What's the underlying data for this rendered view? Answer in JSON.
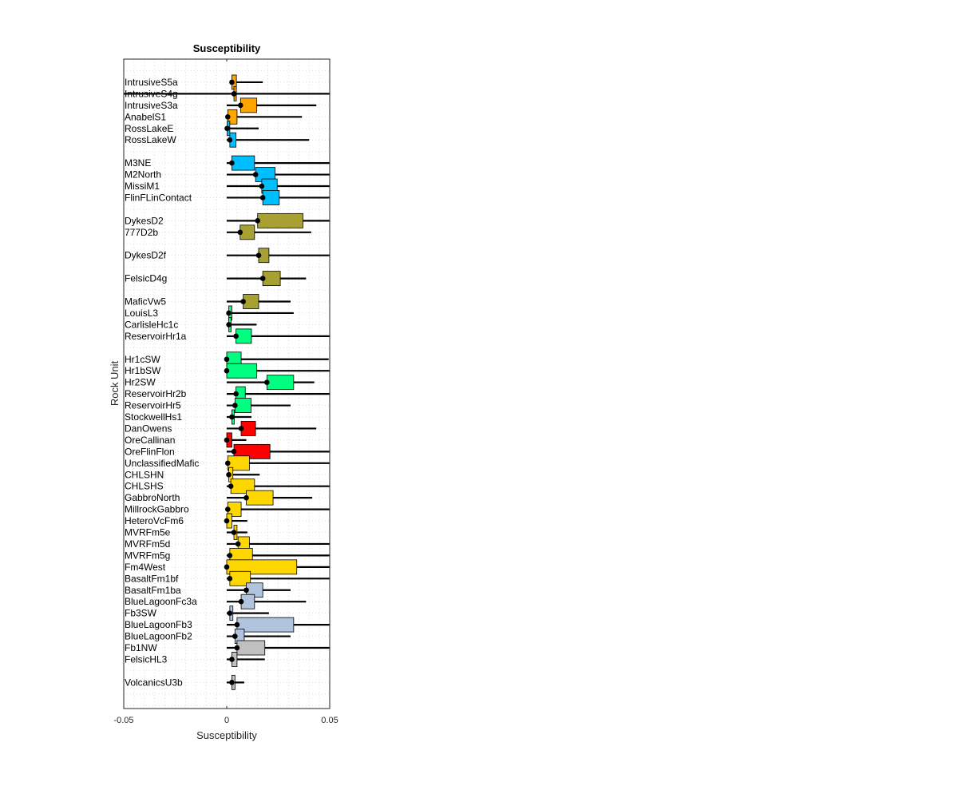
{
  "chart_data": {
    "type": "box",
    "title": "Susceptibility",
    "xlabel": "Susceptibility",
    "ylabel": "Rock Unit",
    "xlim": [
      -0.05,
      0.05
    ],
    "xticks": [
      -0.05,
      0,
      0.05
    ],
    "xtick_labels": [
      "-0.05",
      "0",
      "0.05"
    ],
    "grid": true,
    "units": [
      {
        "name": "IntrusiveS5a",
        "row": 2,
        "color": "#FFA500",
        "median": 0.0025,
        "q1": 0.0025,
        "q3": 0.0047,
        "whisker_low": 0.002,
        "whisker_high": 0.0175
      },
      {
        "name": "IntrusiveS4g",
        "row": 3,
        "color": "#FFA500",
        "median": 0.0035,
        "q1": 0.0035,
        "q3": 0.0035,
        "whisker_low": -0.05,
        "whisker_high": 0.05
      },
      {
        "name": "IntrusiveS3a",
        "row": 4,
        "color": "#FFA500",
        "median": 0.0067,
        "q1": 0.0067,
        "q3": 0.0145,
        "whisker_low": 0.0,
        "whisker_high": 0.0435
      },
      {
        "name": "AnabelS1",
        "row": 5,
        "color": "#FFA500",
        "median": 0.0005,
        "q1": 0.0005,
        "q3": 0.005,
        "whisker_low": 0.0,
        "whisker_high": 0.0365
      },
      {
        "name": "RossLakeE",
        "row": 6,
        "color": "#00BFFF",
        "median": 0.0002,
        "q1": 0.0002,
        "q3": 0.0015,
        "whisker_low": 0.0,
        "whisker_high": 0.0155
      },
      {
        "name": "RossLakeW",
        "row": 7,
        "color": "#00BFFF",
        "median": 0.0015,
        "q1": 0.0015,
        "q3": 0.0045,
        "whisker_low": 0.0,
        "whisker_high": 0.04
      },
      {
        "name": "M3NE",
        "row": 9,
        "color": "#00BFFF",
        "median": 0.0025,
        "q1": 0.0025,
        "q3": 0.0135,
        "whisker_low": 0.0,
        "whisker_high": 0.05
      },
      {
        "name": "M2North",
        "row": 10,
        "color": "#00BFFF",
        "median": 0.014,
        "q1": 0.014,
        "q3": 0.0235,
        "whisker_low": 0.0,
        "whisker_high": 0.05
      },
      {
        "name": "MissiM1",
        "row": 11,
        "color": "#00BFFF",
        "median": 0.017,
        "q1": 0.017,
        "q3": 0.0245,
        "whisker_low": 0.0,
        "whisker_high": 0.05
      },
      {
        "name": "FlinFLinContact",
        "row": 12,
        "color": "#00BFFF",
        "median": 0.0175,
        "q1": 0.0175,
        "q3": 0.0255,
        "whisker_low": 0.0,
        "whisker_high": 0.05
      },
      {
        "name": "DykesD2",
        "row": 14,
        "color": "#A8A032",
        "median": 0.015,
        "q1": 0.015,
        "q3": 0.037,
        "whisker_low": 0.0,
        "whisker_high": 0.05
      },
      {
        "name": "777D2b",
        "row": 15,
        "color": "#A8A032",
        "median": 0.0065,
        "q1": 0.0065,
        "q3": 0.0135,
        "whisker_low": 0.0,
        "whisker_high": 0.041
      },
      {
        "name": "DykesD2f",
        "row": 17,
        "color": "#A8A032",
        "median": 0.0155,
        "q1": 0.0155,
        "q3": 0.0205,
        "whisker_low": 0.0,
        "whisker_high": 0.05
      },
      {
        "name": "FelsicD4g",
        "row": 19,
        "color": "#A8A032",
        "median": 0.0175,
        "q1": 0.0175,
        "q3": 0.026,
        "whisker_low": 0.0,
        "whisker_high": 0.0385
      },
      {
        "name": "MaficVw5",
        "row": 21,
        "color": "#A8A032",
        "median": 0.008,
        "q1": 0.008,
        "q3": 0.0155,
        "whisker_low": 0.0,
        "whisker_high": 0.031
      },
      {
        "name": "LouisL3",
        "row": 22,
        "color": "#00FF80",
        "median": 0.001,
        "q1": 0.001,
        "q3": 0.0025,
        "whisker_low": 0.0,
        "whisker_high": 0.0325
      },
      {
        "name": "CarlisleHc1c",
        "row": 23,
        "color": "#00FF80",
        "median": 0.001,
        "q1": 0.001,
        "q3": 0.002,
        "whisker_low": 0.0,
        "whisker_high": 0.0145
      },
      {
        "name": "ReservoirHr1a",
        "row": 24,
        "color": "#00FF80",
        "median": 0.0045,
        "q1": 0.0045,
        "q3": 0.012,
        "whisker_low": 0.0,
        "whisker_high": 0.05
      },
      {
        "name": "Hr1cSW",
        "row": 26,
        "color": "#00FF80",
        "median": 0.0,
        "q1": 0.0,
        "q3": 0.007,
        "whisker_low": 0.0,
        "whisker_high": 0.0495
      },
      {
        "name": "Hr1bSW",
        "row": 27,
        "color": "#00FF80",
        "median": 0.0,
        "q1": 0.0,
        "q3": 0.0145,
        "whisker_low": 0.0,
        "whisker_high": 0.05
      },
      {
        "name": "Hr2SW",
        "row": 28,
        "color": "#00FF80",
        "median": 0.0195,
        "q1": 0.0195,
        "q3": 0.0325,
        "whisker_low": 0.0,
        "whisker_high": 0.0425
      },
      {
        "name": "ReservoirHr2b",
        "row": 29,
        "color": "#00FF80",
        "median": 0.0045,
        "q1": 0.0045,
        "q3": 0.009,
        "whisker_low": 0.0,
        "whisker_high": 0.05
      },
      {
        "name": "ReservoirHr5",
        "row": 30,
        "color": "#00FF80",
        "median": 0.004,
        "q1": 0.004,
        "q3": 0.0118,
        "whisker_low": 0.0,
        "whisker_high": 0.031
      },
      {
        "name": "StockwellHs1",
        "row": 31,
        "color": "#00FF80",
        "median": 0.0025,
        "q1": 0.0025,
        "q3": 0.0033,
        "whisker_low": 0.0,
        "whisker_high": 0.012
      },
      {
        "name": "DanOwens",
        "row": 32,
        "color": "#FF0000",
        "median": 0.007,
        "q1": 0.007,
        "q3": 0.014,
        "whisker_low": 0.0,
        "whisker_high": 0.0435
      },
      {
        "name": "OreCallinan",
        "row": 33,
        "color": "#FF0000",
        "median": 0.0,
        "q1": 0.0,
        "q3": 0.0025,
        "whisker_low": 0.0,
        "whisker_high": 0.0095
      },
      {
        "name": "OreFlinFlon",
        "row": 34,
        "color": "#FF0000",
        "median": 0.0035,
        "q1": 0.0035,
        "q3": 0.021,
        "whisker_low": 0.0,
        "whisker_high": 0.05
      },
      {
        "name": "UnclassifiedMafic",
        "row": 35,
        "color": "#FFD700",
        "median": 0.0005,
        "q1": 0.0005,
        "q3": 0.011,
        "whisker_low": 0.0,
        "whisker_high": 0.05
      },
      {
        "name": "CHLSHN",
        "row": 36,
        "color": "#FFD700",
        "median": 0.001,
        "q1": 0.001,
        "q3": 0.003,
        "whisker_low": 0.0,
        "whisker_high": 0.016
      },
      {
        "name": "CHLSHS",
        "row": 37,
        "color": "#FFD700",
        "median": 0.002,
        "q1": 0.002,
        "q3": 0.0135,
        "whisker_low": 0.0,
        "whisker_high": 0.05
      },
      {
        "name": "GabbroNorth",
        "row": 38,
        "color": "#FFD700",
        "median": 0.0095,
        "q1": 0.0095,
        "q3": 0.0225,
        "whisker_low": 0.0,
        "whisker_high": 0.0415
      },
      {
        "name": "MillrockGabbro",
        "row": 39,
        "color": "#FFD700",
        "median": 0.0005,
        "q1": 0.0005,
        "q3": 0.007,
        "whisker_low": 0.0,
        "whisker_high": 0.05
      },
      {
        "name": "HeteroVcFm6",
        "row": 40,
        "color": "#FFD700",
        "median": 0.0,
        "q1": 0.0,
        "q3": 0.0025,
        "whisker_low": 0.0,
        "whisker_high": 0.01
      },
      {
        "name": "MVRFm5e",
        "row": 41,
        "color": "#FFD700",
        "median": 0.0035,
        "q1": 0.0035,
        "q3": 0.005,
        "whisker_low": 0.0,
        "whisker_high": 0.01
      },
      {
        "name": "MVRFm5d",
        "row": 42,
        "color": "#FFD700",
        "median": 0.0055,
        "q1": 0.0055,
        "q3": 0.011,
        "whisker_low": 0.0,
        "whisker_high": 0.05
      },
      {
        "name": "MVRFm5g",
        "row": 43,
        "color": "#FFD700",
        "median": 0.0015,
        "q1": 0.0015,
        "q3": 0.0125,
        "whisker_low": 0.0,
        "whisker_high": 0.05
      },
      {
        "name": "Fm4West",
        "row": 44,
        "color": "#FFD700",
        "median": 0.0,
        "q1": 0.0,
        "q3": 0.034,
        "whisker_low": 0.0,
        "whisker_high": 0.05
      },
      {
        "name": "BasaltFm1bf",
        "row": 45,
        "color": "#FFD700",
        "median": 0.0015,
        "q1": 0.0015,
        "q3": 0.0115,
        "whisker_low": 0.0,
        "whisker_high": 0.05
      },
      {
        "name": "BasaltFm1ba",
        "row": 46,
        "color": "#B0C4DE",
        "median": 0.0095,
        "q1": 0.0095,
        "q3": 0.0175,
        "whisker_low": 0.0,
        "whisker_high": 0.031
      },
      {
        "name": "BlueLagoonFc3a",
        "row": 47,
        "color": "#B0C4DE",
        "median": 0.007,
        "q1": 0.007,
        "q3": 0.0135,
        "whisker_low": 0.0,
        "whisker_high": 0.0385
      },
      {
        "name": "Fb3SW",
        "row": 48,
        "color": "#B0C4DE",
        "median": 0.0015,
        "q1": 0.0015,
        "q3": 0.003,
        "whisker_low": 0.0,
        "whisker_high": 0.0205
      },
      {
        "name": "BlueLagoonFb3",
        "row": 49,
        "color": "#B0C4DE",
        "median": 0.005,
        "q1": 0.005,
        "q3": 0.0325,
        "whisker_low": 0.0,
        "whisker_high": 0.05
      },
      {
        "name": "BlueLagoonFb2",
        "row": 50,
        "color": "#B0C4DE",
        "median": 0.004,
        "q1": 0.004,
        "q3": 0.0085,
        "whisker_low": 0.0,
        "whisker_high": 0.031
      },
      {
        "name": "Fb1NW",
        "row": 51,
        "color": "#C0C0C0",
        "median": 0.005,
        "q1": 0.005,
        "q3": 0.0185,
        "whisker_low": 0.0,
        "whisker_high": 0.05
      },
      {
        "name": "FelsicHL3",
        "row": 52,
        "color": "#C0C0C0",
        "median": 0.0025,
        "q1": 0.0025,
        "q3": 0.005,
        "whisker_low": 0.0,
        "whisker_high": 0.0185
      },
      {
        "name": "VolcanicsU3b",
        "row": 54,
        "color": "#C0C0C0",
        "median": 0.0025,
        "q1": 0.0025,
        "q3": 0.004,
        "whisker_low": 0.0,
        "whisker_high": 0.0085
      }
    ]
  }
}
